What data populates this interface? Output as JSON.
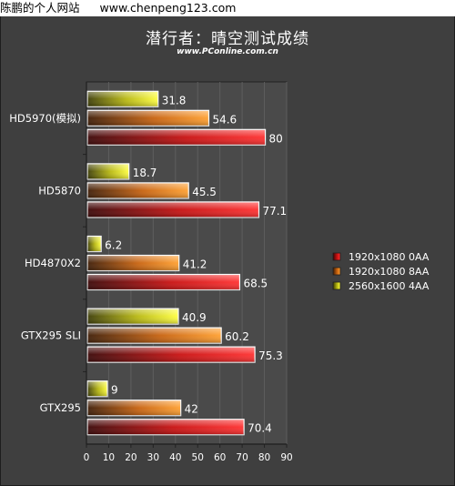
{
  "watermark": {
    "site_name": "陈鹏的个人网站",
    "url": "www.chenpeng123.com"
  },
  "chart_data": {
    "type": "bar",
    "orientation": "horizontal",
    "title": "潜行者：晴空测试成绩",
    "subtitle": "www.PConline.com.cn",
    "categories": [
      "HD5970(模拟)",
      "HD5870",
      "HD4870X2",
      "GTX295 SLI",
      "GTX295"
    ],
    "series": [
      {
        "name": "2560x1600 4AA",
        "color": "#f2f21a",
        "values": [
          31.8,
          18.7,
          6.2,
          40.9,
          9
        ]
      },
      {
        "name": "1920x1080 8AA",
        "color": "#f08a1a",
        "values": [
          54.6,
          45.5,
          41.2,
          60.2,
          42
        ]
      },
      {
        "name": "1920x1080 0AA",
        "color": "#ee1c1c",
        "values": [
          80,
          77.1,
          68.5,
          75.3,
          70.4
        ]
      }
    ],
    "legend_order": [
      "1920x1080 0AA",
      "1920x1080 8AA",
      "2560x1600 4AA"
    ],
    "xlim": [
      0,
      90
    ],
    "xticks": [
      0,
      10,
      20,
      30,
      40,
      50,
      60,
      70,
      80,
      90
    ],
    "grid": true,
    "legend_position": "right"
  }
}
